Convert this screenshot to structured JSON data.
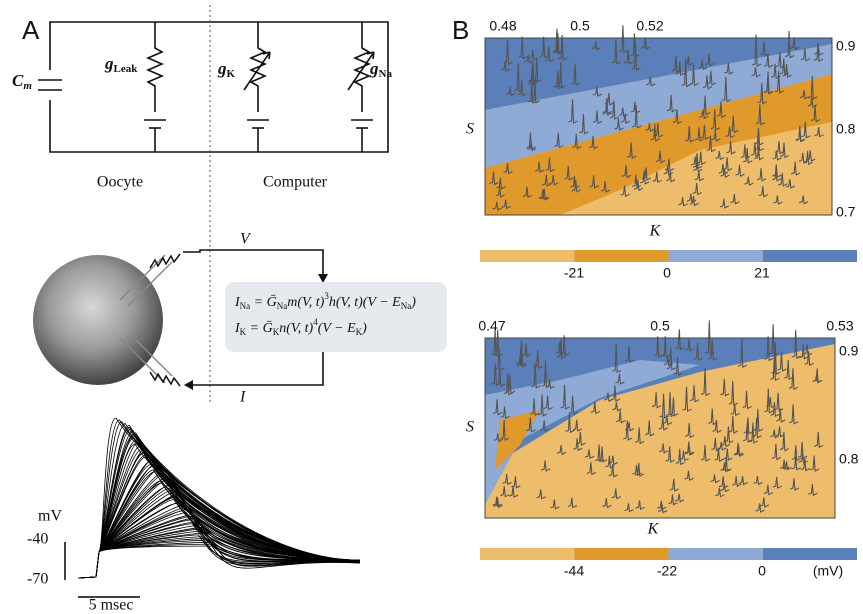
{
  "panel_a": {
    "label": "A",
    "capacitor": {
      "symbol": "C",
      "subscript": "m"
    },
    "conductances": [
      {
        "symbol": "g",
        "subscript": "Leak"
      },
      {
        "symbol": "g",
        "subscript": "K"
      },
      {
        "symbol": "g",
        "subscript": "Na"
      }
    ],
    "oocyte_label": "Oocyte",
    "computer_label": "Computer",
    "voltage_label": "V",
    "current_label": "I",
    "equations": [
      [
        {
          "text": "I"
        },
        {
          "sub": "Na"
        },
        {
          "text": " = Ḡ"
        },
        {
          "sub": "Na"
        },
        {
          "text": "m(V, t)"
        },
        {
          "sup": "3"
        },
        {
          "text": "h(V, t)(V − E"
        },
        {
          "sub": "Na"
        },
        {
          "text": ")"
        }
      ],
      [
        {
          "text": "I"
        },
        {
          "sub": "K"
        },
        {
          "text": " = Ḡ"
        },
        {
          "sub": "K"
        },
        {
          "text": "n(V, t)"
        },
        {
          "sup": "4"
        },
        {
          "text": "(V − E"
        },
        {
          "sub": "K"
        },
        {
          "text": ")"
        }
      ]
    ],
    "scale": {
      "unit": "mV",
      "high": "-40",
      "low": "-70",
      "time": "5 msec"
    }
  },
  "panel_b": {
    "label": "B",
    "plots": [
      {
        "top_ticks": [
          "0.48",
          "0.5",
          "0.52"
        ],
        "right_ticks": [
          "0.9",
          "0.8",
          "0.7"
        ],
        "y_label": "S",
        "x_label": "K",
        "colorbar_ticks": [
          "-21",
          "0",
          "21"
        ]
      },
      {
        "top_ticks": [
          "0.47",
          "0.5",
          "0.53"
        ],
        "right_ticks": [
          "0.9",
          "0.8"
        ],
        "y_label": "S",
        "x_label": "K",
        "colorbar_ticks": [
          "-44",
          "-22",
          "0"
        ],
        "colorbar_unit": "(mV)"
      }
    ]
  }
}
